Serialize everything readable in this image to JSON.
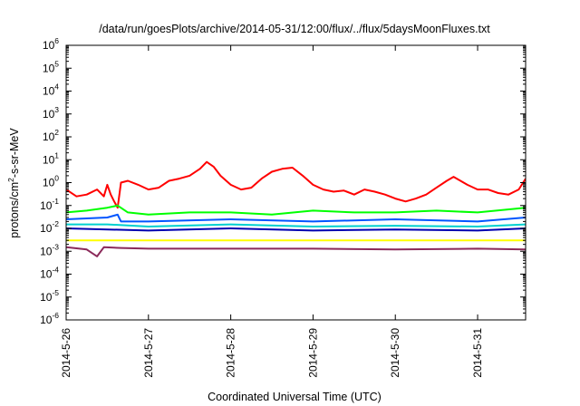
{
  "chart_data": {
    "type": "line",
    "title": "/data/run/goesPlots/archive/2014-05-31/12:00/flux/../flux/5daysMoonFluxes.txt",
    "xlabel": "Coordinated Universal Time (UTC)",
    "ylabel": "protons/cm²-s-sr-MeV",
    "ylabel_parts": {
      "pre": "protons/cm",
      "sup": "2",
      "post": "-s-sr-MeV"
    },
    "yscale": "log",
    "ylim": [
      1e-06,
      1000000.0
    ],
    "yticks": [
      {
        "base": "10",
        "exp": "-6",
        "value": 1e-06
      },
      {
        "base": "10",
        "exp": "-5",
        "value": 1e-05
      },
      {
        "base": "10",
        "exp": "-4",
        "value": 0.0001
      },
      {
        "base": "10",
        "exp": "-3",
        "value": 0.001
      },
      {
        "base": "10",
        "exp": "-2",
        "value": 0.01
      },
      {
        "base": "10",
        "exp": "-1",
        "value": 0.1
      },
      {
        "base": "10",
        "exp": "0",
        "value": 1
      },
      {
        "base": "10",
        "exp": "1",
        "value": 10
      },
      {
        "base": "10",
        "exp": "2",
        "value": 100
      },
      {
        "base": "10",
        "exp": "3",
        "value": 1000
      },
      {
        "base": "10",
        "exp": "4",
        "value": 10000
      },
      {
        "base": "10",
        "exp": "5",
        "value": 100000
      },
      {
        "base": "10",
        "exp": "6",
        "value": 1000000
      }
    ],
    "xlim": [
      "2014-05-26",
      "2014-05-31 14:00"
    ],
    "xticks": [
      "2014-5-26",
      "2014-5-27",
      "2014-5-28",
      "2014-5-29",
      "2014-5-30",
      "2014-5-31"
    ],
    "grid": false,
    "legend": "none",
    "series": [
      {
        "color": "#ff0000",
        "points": [
          [
            "2014-05-26 00:00",
            0.5
          ],
          [
            "2014-05-26 03:00",
            0.25
          ],
          [
            "2014-05-26 06:00",
            0.3
          ],
          [
            "2014-05-26 09:00",
            0.5
          ],
          [
            "2014-05-26 11:00",
            0.25
          ],
          [
            "2014-05-26 12:00",
            0.8
          ],
          [
            "2014-05-26 13:00",
            0.3
          ],
          [
            "2014-05-26 14:00",
            0.15
          ],
          [
            "2014-05-26 15:00",
            0.08
          ],
          [
            "2014-05-26 16:00",
            1.0
          ],
          [
            "2014-05-26 18:00",
            1.2
          ],
          [
            "2014-05-26 21:00",
            0.8
          ],
          [
            "2014-05-27 00:00",
            0.5
          ],
          [
            "2014-05-27 03:00",
            0.6
          ],
          [
            "2014-05-27 06:00",
            1.2
          ],
          [
            "2014-05-27 09:00",
            1.5
          ],
          [
            "2014-05-27 12:00",
            2.0
          ],
          [
            "2014-05-27 15:00",
            4.0
          ],
          [
            "2014-05-27 17:00",
            8.0
          ],
          [
            "2014-05-27 19:00",
            5.0
          ],
          [
            "2014-05-27 21:00",
            2.0
          ],
          [
            "2014-05-28 00:00",
            0.8
          ],
          [
            "2014-05-28 03:00",
            0.5
          ],
          [
            "2014-05-28 06:00",
            0.6
          ],
          [
            "2014-05-28 09:00",
            1.5
          ],
          [
            "2014-05-28 12:00",
            3.0
          ],
          [
            "2014-05-28 15:00",
            4.0
          ],
          [
            "2014-05-28 18:00",
            4.5
          ],
          [
            "2014-05-28 21:00",
            2.0
          ],
          [
            "2014-05-29 00:00",
            0.8
          ],
          [
            "2014-05-29 03:00",
            0.5
          ],
          [
            "2014-05-29 06:00",
            0.4
          ],
          [
            "2014-05-29 09:00",
            0.45
          ],
          [
            "2014-05-29 12:00",
            0.3
          ],
          [
            "2014-05-29 15:00",
            0.5
          ],
          [
            "2014-05-29 18:00",
            0.4
          ],
          [
            "2014-05-29 21:00",
            0.3
          ],
          [
            "2014-05-30 00:00",
            0.2
          ],
          [
            "2014-05-30 03:00",
            0.15
          ],
          [
            "2014-05-30 06:00",
            0.2
          ],
          [
            "2014-05-30 09:00",
            0.3
          ],
          [
            "2014-05-30 12:00",
            0.6
          ],
          [
            "2014-05-30 15:00",
            1.2
          ],
          [
            "2014-05-30 17:00",
            1.8
          ],
          [
            "2014-05-30 19:00",
            1.2
          ],
          [
            "2014-05-30 21:00",
            0.8
          ],
          [
            "2014-05-31 00:00",
            0.5
          ],
          [
            "2014-05-31 03:00",
            0.5
          ],
          [
            "2014-05-31 06:00",
            0.35
          ],
          [
            "2014-05-31 09:00",
            0.3
          ],
          [
            "2014-05-31 12:00",
            0.5
          ],
          [
            "2014-05-31 14:00",
            1.5
          ]
        ]
      },
      {
        "color": "#00ff00",
        "points": [
          [
            "2014-05-26 00:00",
            0.05
          ],
          [
            "2014-05-26 06:00",
            0.06
          ],
          [
            "2014-05-26 12:00",
            0.08
          ],
          [
            "2014-05-26 15:00",
            0.1
          ],
          [
            "2014-05-26 18:00",
            0.05
          ],
          [
            "2014-05-27 00:00",
            0.04
          ],
          [
            "2014-05-27 12:00",
            0.05
          ],
          [
            "2014-05-28 00:00",
            0.05
          ],
          [
            "2014-05-28 12:00",
            0.04
          ],
          [
            "2014-05-29 00:00",
            0.06
          ],
          [
            "2014-05-29 12:00",
            0.05
          ],
          [
            "2014-05-30 00:00",
            0.05
          ],
          [
            "2014-05-30 12:00",
            0.06
          ],
          [
            "2014-05-31 00:00",
            0.05
          ],
          [
            "2014-05-31 14:00",
            0.08
          ]
        ]
      },
      {
        "color": "#0055ff",
        "points": [
          [
            "2014-05-26 00:00",
            0.025
          ],
          [
            "2014-05-26 12:00",
            0.03
          ],
          [
            "2014-05-26 15:00",
            0.04
          ],
          [
            "2014-05-26 16:00",
            0.02
          ],
          [
            "2014-05-27 00:00",
            0.02
          ],
          [
            "2014-05-28 00:00",
            0.025
          ],
          [
            "2014-05-29 00:00",
            0.02
          ],
          [
            "2014-05-30 00:00",
            0.025
          ],
          [
            "2014-05-31 00:00",
            0.02
          ],
          [
            "2014-05-31 14:00",
            0.03
          ]
        ]
      },
      {
        "color": "#00d0d0",
        "points": [
          [
            "2014-05-26 00:00",
            0.015
          ],
          [
            "2014-05-26 12:00",
            0.015
          ],
          [
            "2014-05-27 00:00",
            0.012
          ],
          [
            "2014-05-28 00:00",
            0.015
          ],
          [
            "2014-05-29 00:00",
            0.012
          ],
          [
            "2014-05-30 00:00",
            0.013
          ],
          [
            "2014-05-31 00:00",
            0.012
          ],
          [
            "2014-05-31 14:00",
            0.015
          ]
        ]
      },
      {
        "color": "#0000b0",
        "points": [
          [
            "2014-05-26 00:00",
            0.01
          ],
          [
            "2014-05-27 00:00",
            0.008
          ],
          [
            "2014-05-28 00:00",
            0.01
          ],
          [
            "2014-05-29 00:00",
            0.008
          ],
          [
            "2014-05-30 00:00",
            0.009
          ],
          [
            "2014-05-31 00:00",
            0.008
          ],
          [
            "2014-05-31 14:00",
            0.01
          ]
        ]
      },
      {
        "color": "#ffff00",
        "points": [
          [
            "2014-05-26 00:00",
            0.003
          ],
          [
            "2014-05-27 00:00",
            0.003
          ],
          [
            "2014-05-28 00:00",
            0.003
          ],
          [
            "2014-05-29 00:00",
            0.003
          ],
          [
            "2014-05-30 00:00",
            0.003
          ],
          [
            "2014-05-31 00:00",
            0.003
          ],
          [
            "2014-05-31 14:00",
            0.003
          ]
        ]
      },
      {
        "color": "#8b2a5a",
        "points": [
          [
            "2014-05-26 00:00",
            0.0015
          ],
          [
            "2014-05-26 06:00",
            0.0012
          ],
          [
            "2014-05-26 09:00",
            0.0006
          ],
          [
            "2014-05-26 11:00",
            0.0015
          ],
          [
            "2014-05-26 16:00",
            0.0014
          ],
          [
            "2014-05-27 00:00",
            0.0013
          ],
          [
            "2014-05-28 00:00",
            0.0013
          ],
          [
            "2014-05-29 00:00",
            0.0013
          ],
          [
            "2014-05-30 00:00",
            0.0012
          ],
          [
            "2014-05-31 00:00",
            0.0013
          ],
          [
            "2014-05-31 14:00",
            0.0012
          ]
        ]
      }
    ]
  }
}
